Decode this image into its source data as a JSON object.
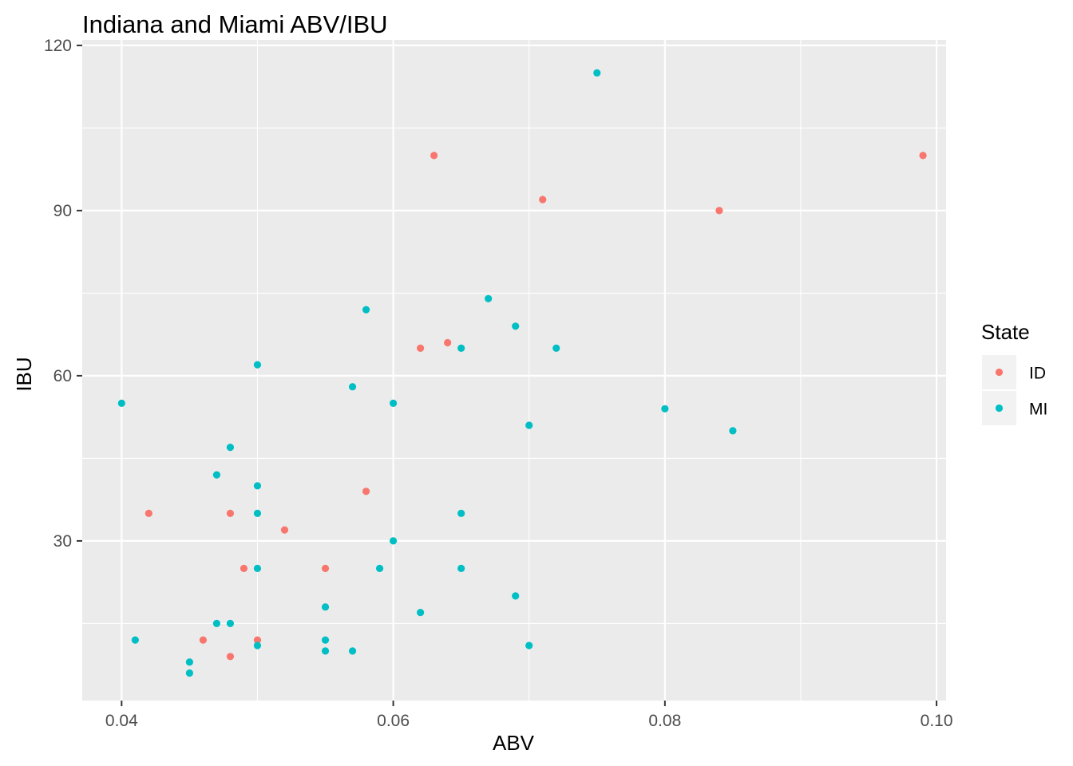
{
  "chart_data": {
    "type": "scatter",
    "title": "Indiana and Miami ABV/IBU",
    "xlabel": "ABV",
    "ylabel": "IBU",
    "xlim": [
      0.0371,
      0.1007
    ],
    "ylim": [
      1.0,
      121.0
    ],
    "x_ticks": [
      0.04,
      0.06,
      0.08,
      0.1
    ],
    "x_tick_labels": [
      "0.04",
      "0.06",
      "0.08",
      "0.10"
    ],
    "y_ticks": [
      30,
      60,
      90,
      120
    ],
    "y_tick_labels": [
      "30",
      "60",
      "90",
      "120"
    ],
    "grid": true,
    "legend": {
      "title": "State",
      "position": "right",
      "entries": [
        "ID",
        "MI"
      ]
    },
    "colors": {
      "ID": "#F8766D",
      "MI": "#00BFC4"
    },
    "series": [
      {
        "name": "ID",
        "points": [
          [
            0.042,
            35
          ],
          [
            0.046,
            12
          ],
          [
            0.048,
            35
          ],
          [
            0.048,
            9
          ],
          [
            0.049,
            25
          ],
          [
            0.05,
            12
          ],
          [
            0.052,
            32
          ],
          [
            0.055,
            25
          ],
          [
            0.058,
            39
          ],
          [
            0.062,
            65
          ],
          [
            0.063,
            100
          ],
          [
            0.064,
            66
          ],
          [
            0.071,
            92
          ],
          [
            0.084,
            90
          ],
          [
            0.099,
            100
          ]
        ]
      },
      {
        "name": "MI",
        "points": [
          [
            0.04,
            55
          ],
          [
            0.041,
            12
          ],
          [
            0.045,
            8
          ],
          [
            0.045,
            6
          ],
          [
            0.047,
            42
          ],
          [
            0.047,
            15
          ],
          [
            0.048,
            47
          ],
          [
            0.048,
            15
          ],
          [
            0.05,
            62
          ],
          [
            0.05,
            40
          ],
          [
            0.05,
            35
          ],
          [
            0.05,
            25
          ],
          [
            0.05,
            11
          ],
          [
            0.055,
            18
          ],
          [
            0.055,
            12
          ],
          [
            0.055,
            10
          ],
          [
            0.057,
            58
          ],
          [
            0.057,
            10
          ],
          [
            0.058,
            72
          ],
          [
            0.059,
            25
          ],
          [
            0.06,
            55
          ],
          [
            0.06,
            30
          ],
          [
            0.062,
            17
          ],
          [
            0.065,
            65
          ],
          [
            0.065,
            35
          ],
          [
            0.065,
            25
          ],
          [
            0.067,
            74
          ],
          [
            0.069,
            69
          ],
          [
            0.069,
            20
          ],
          [
            0.07,
            51
          ],
          [
            0.07,
            11
          ],
          [
            0.072,
            65
          ],
          [
            0.075,
            115
          ],
          [
            0.08,
            54
          ],
          [
            0.085,
            50
          ]
        ]
      }
    ]
  }
}
